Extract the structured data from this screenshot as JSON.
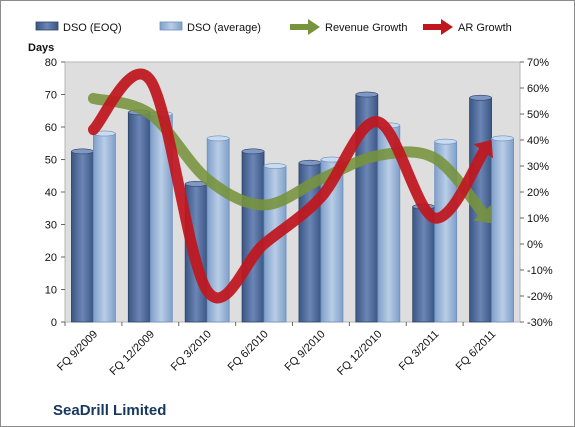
{
  "chart_data": {
    "type": "bar",
    "company_label": "SeaDrill Limited",
    "categories": [
      "FQ 9/2009",
      "FQ 12/2009",
      "FQ 3/2010",
      "FQ 6/2010",
      "FQ 9/2010",
      "FQ 12/2010",
      "FQ 3/2011",
      "FQ 6/2011"
    ],
    "left_axis": {
      "title": "Days",
      "range": [
        0,
        80
      ],
      "ticks": [
        "0",
        "10",
        "20",
        "30",
        "40",
        "50",
        "60",
        "70",
        "80"
      ]
    },
    "right_axis": {
      "range": [
        -30,
        70
      ],
      "ticks": [
        "-30%",
        "-20%",
        "-10%",
        "0%",
        "10%",
        "20%",
        "30%",
        "40%",
        "50%",
        "60%",
        "70%"
      ]
    },
    "series": [
      {
        "name": "DSO (EOQ)",
        "type": "bar",
        "axis": "left",
        "color": "#4f6a99",
        "values": [
          52.5,
          64.5,
          42.5,
          52.5,
          49,
          70,
          35.5,
          69
        ]
      },
      {
        "name": "DSO (average)",
        "type": "bar",
        "axis": "left",
        "color": "#95b3d7",
        "values": [
          58,
          64,
          56.5,
          48,
          50,
          60.5,
          55.5,
          56.5
        ]
      },
      {
        "name": "Revenue Growth",
        "type": "line",
        "axis": "right",
        "unit": "%",
        "color": "#77933c",
        "values": [
          56,
          50,
          25,
          15,
          25,
          34,
          33,
          8
        ]
      },
      {
        "name": "AR Growth",
        "type": "line",
        "axis": "right",
        "unit": "%",
        "color": "#c0171f",
        "values": [
          44,
          63,
          -18,
          0,
          18,
          47,
          10,
          40
        ]
      }
    ],
    "legend_position": "top",
    "grid": {
      "horizontal": false,
      "vertical": false
    },
    "plot_background": "#dedede"
  }
}
